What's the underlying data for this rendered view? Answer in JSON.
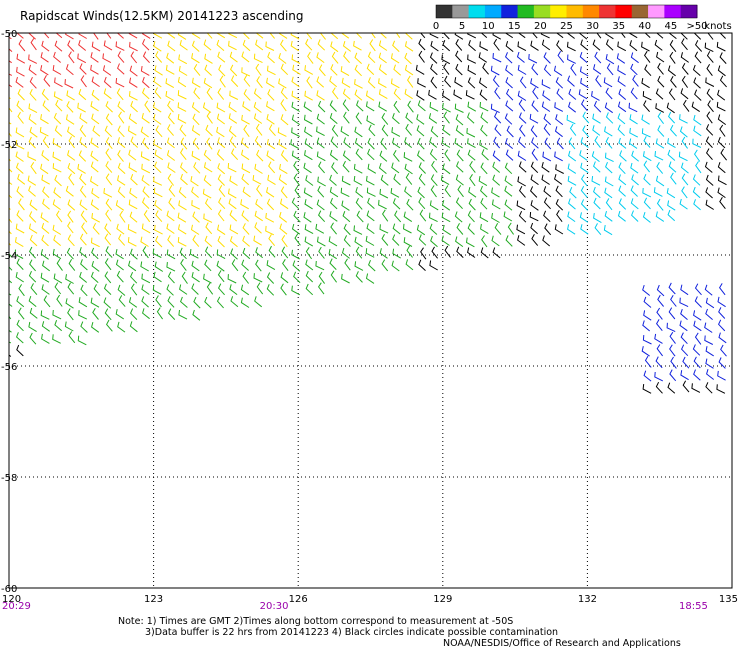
{
  "chart_data": {
    "type": "wind-barb-map",
    "title": "Rapidscat Winds(12.5KM) 20141223 ascending",
    "x_axis": {
      "range": [
        120,
        135
      ],
      "ticks": [
        {
          "value": 120,
          "label": "120"
        },
        {
          "value": 123,
          "label": "123"
        },
        {
          "value": 126,
          "label": "126"
        },
        {
          "value": 129,
          "label": "129"
        },
        {
          "value": 132,
          "label": "132"
        },
        {
          "value": 135,
          "label": "135"
        }
      ]
    },
    "y_axis": {
      "range": [
        -60,
        -50
      ],
      "ticks": [
        {
          "value": -50,
          "label": "-50"
        },
        {
          "value": -52,
          "label": "-52"
        },
        {
          "value": -54,
          "label": "-54"
        },
        {
          "value": -56,
          "label": "-56"
        },
        {
          "value": -58,
          "label": "-58"
        },
        {
          "value": -60,
          "label": "-60"
        }
      ]
    },
    "grid": true,
    "times": [
      {
        "lon": 120,
        "label": "20:29"
      },
      {
        "lon": 125.5,
        "label": "20:30"
      },
      {
        "lon": 134.2,
        "label": "18:55"
      }
    ],
    "time_color": "#9900aa",
    "colorbar": {
      "unit": "knots",
      "labels": [
        "0",
        "5",
        "10",
        "15",
        "20",
        "25",
        "30",
        "35",
        "40",
        "45",
        ">50"
      ],
      "colors": [
        "#333333",
        "#999999",
        "#00ddee",
        "#00aaff",
        "#1122dd",
        "#22bb22",
        "#99dd22",
        "#ffee00",
        "#ffbb00",
        "#ff8800",
        "#ee3333",
        "#ff0000",
        "#996633",
        "#ff99ff",
        "#aa00ff",
        "#6600aa"
      ]
    },
    "speed_regions": [
      {
        "lon": [
          120,
          123.5
        ],
        "lat": [
          -51.6,
          -50
        ],
        "speed": "30-40",
        "color": "#ee3333"
      },
      {
        "lon": [
          120,
          126.5
        ],
        "lat": [
          -54.0,
          -51.0
        ],
        "speed": "20-25",
        "color": "#ffdd00"
      },
      {
        "lon": [
          123,
          128.5
        ],
        "lat": [
          -51.5,
          -50
        ],
        "speed": "20-25",
        "color": "#ffdd00"
      },
      {
        "lon": [
          126,
          130.5
        ],
        "lat": [
          -54.0,
          -51.3
        ],
        "speed": "15-20",
        "color": "#22aa22"
      },
      {
        "lon": [
          120,
          128.5
        ],
        "lat": [
          -55.8,
          -54.0
        ],
        "speed": "10-20",
        "color": "#22aa22"
      },
      {
        "lon": [
          130,
          133.2
        ],
        "lat": [
          -52.5,
          -50.5
        ],
        "speed": "10-15",
        "color": "#1122dd"
      },
      {
        "lon": [
          131.5,
          134.5
        ],
        "lat": [
          -54.0,
          -51.5
        ],
        "speed": "5-10",
        "color": "#00ccee"
      },
      {
        "lon": [
          133.3,
          134.9
        ],
        "lat": [
          -56.4,
          -54.5
        ],
        "speed": "10-20",
        "color": "#1122dd"
      }
    ],
    "notes": [
      "Note: 1) Times are GMT 2)Times along bottom correspond to measurement at -50S",
      "3)Data buffer is 22 hrs from 20141223 4) Black circles indicate possible contamination"
    ],
    "credit": "NOAA/NESDIS/Office of Research and Applications"
  }
}
